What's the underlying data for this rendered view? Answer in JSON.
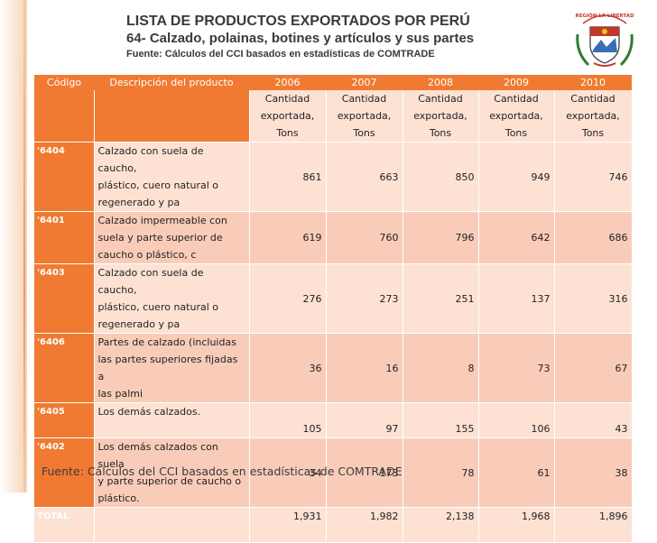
{
  "header": {
    "title": "LISTA DE PRODUCTOS EXPORTADOS POR PERÚ",
    "subtitle": "64- Calzado, polainas, botines y artículos y sus partes",
    "source": "Fuente: Cálculos del CCI basados en estadísticas de COMTRADE"
  },
  "table": {
    "col_code": "Código",
    "col_desc": "Descripción del producto",
    "years": [
      "2006",
      "2007",
      "2008",
      "2009",
      "2010"
    ],
    "unit_lines": [
      "Cantidad",
      "exportada,",
      "Tons"
    ],
    "rows": [
      {
        "code": "'6404",
        "desc": [
          "Calzado con suela de caucho,",
          "plástico, cuero natural o",
          "regenerado y pa"
        ],
        "values": [
          "861",
          "663",
          "850",
          "949",
          "746"
        ]
      },
      {
        "code": "'6401",
        "desc": [
          "Calzado impermeable con",
          "suela y parte superior de",
          "caucho o plástico, c"
        ],
        "values": [
          "619",
          "760",
          "796",
          "642",
          "686"
        ]
      },
      {
        "code": "'6403",
        "desc": [
          "Calzado con suela de caucho,",
          "plástico, cuero natural o",
          "regenerado y pa"
        ],
        "values": [
          "276",
          "273",
          "251",
          "137",
          "316"
        ]
      },
      {
        "code": "'6406",
        "desc": [
          "Partes de calzado (incluidas",
          "las partes superiores fijadas a",
          "las palmi"
        ],
        "values": [
          "36",
          "16",
          "8",
          "73",
          "67"
        ]
      },
      {
        "code": "'6405",
        "desc": [
          "Los demás calzados."
        ],
        "values": [
          "105",
          "97",
          "155",
          "106",
          "43"
        ]
      },
      {
        "code": "'6402",
        "desc": [
          "Los demás calzados con suela",
          "y parte superior de caucho o",
          "plástico."
        ],
        "values": [
          "34",
          "173",
          "78",
          "61",
          "38"
        ]
      }
    ],
    "total": {
      "label": "TOTAL",
      "values": [
        "1,931",
        "1,982",
        "2,138",
        "1,968",
        "1,896"
      ]
    }
  },
  "footer": "Fuente: Cálculos del CCI basados en estadísticas de COMTRADE",
  "seal_text": "REGIÓN LA LIBERTAD",
  "colors": {
    "accent": "#f07a31",
    "row_light": "#fde2d4",
    "row_dark": "#f9ccba"
  }
}
